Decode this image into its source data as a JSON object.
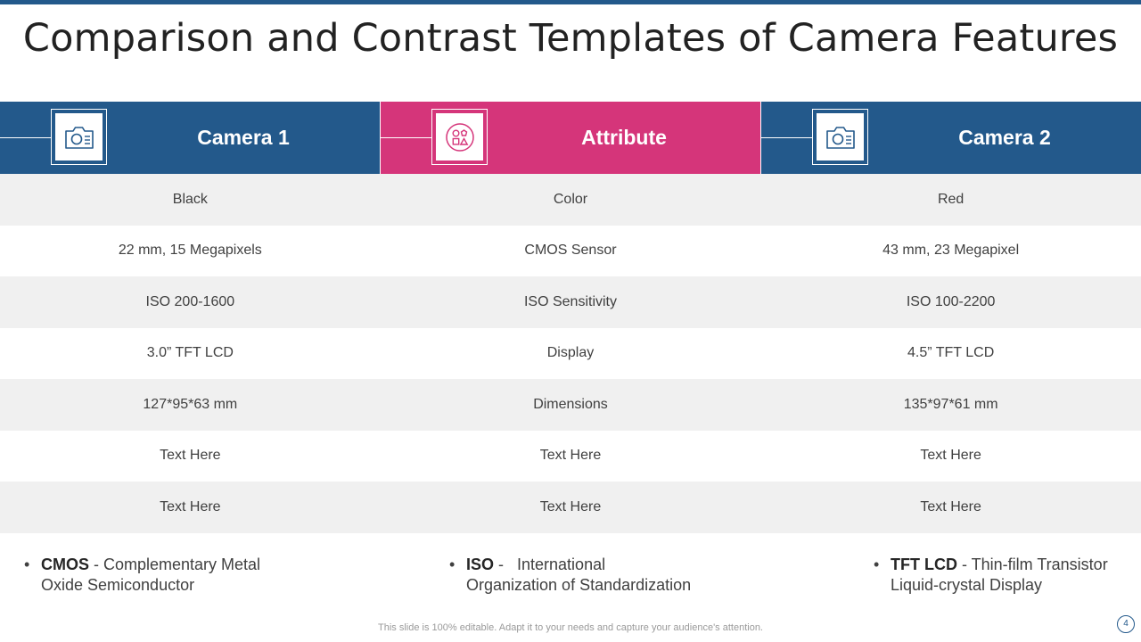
{
  "title": "Comparison and Contrast Templates of Camera Features",
  "colors": {
    "accent_blue": "#23598b",
    "accent_pink": "#d5357a",
    "row_shade": "#f0f0f0"
  },
  "headers": [
    {
      "label": "Camera 1",
      "icon": "camera-icon"
    },
    {
      "label": "Attribute",
      "icon": "shapes-icon"
    },
    {
      "label": "Camera 2",
      "icon": "camera-icon"
    }
  ],
  "rows": [
    [
      "Black",
      "Color",
      "Red"
    ],
    [
      "22 mm, 15 Megapixels",
      "CMOS Sensor",
      "43 mm, 23 Megapixel"
    ],
    [
      "ISO 200-1600",
      "ISO Sensitivity",
      "ISO 100-2200"
    ],
    [
      "3.0” TFT LCD",
      "Display",
      "4.5” TFT LCD"
    ],
    [
      "127*95*63 mm",
      "Dimensions",
      "135*97*61 mm"
    ],
    [
      "Text Here",
      "Text Here",
      "Text Here"
    ],
    [
      "Text Here",
      "Text Here",
      "Text Here"
    ]
  ],
  "notes": [
    {
      "term": "CMOS",
      "line1": " - Complementary Metal",
      "line2": "Oxide Semiconductor"
    },
    {
      "term": "ISO",
      "line1": " -   International",
      "line2": "Organization of Standardization"
    },
    {
      "term": "TFT LCD",
      "line1": " - Thin-film Transistor",
      "line2": "Liquid-crystal Display"
    }
  ],
  "footer": "This slide is 100% editable. Adapt it to your needs and capture your audience's attention.",
  "page_number": "4"
}
